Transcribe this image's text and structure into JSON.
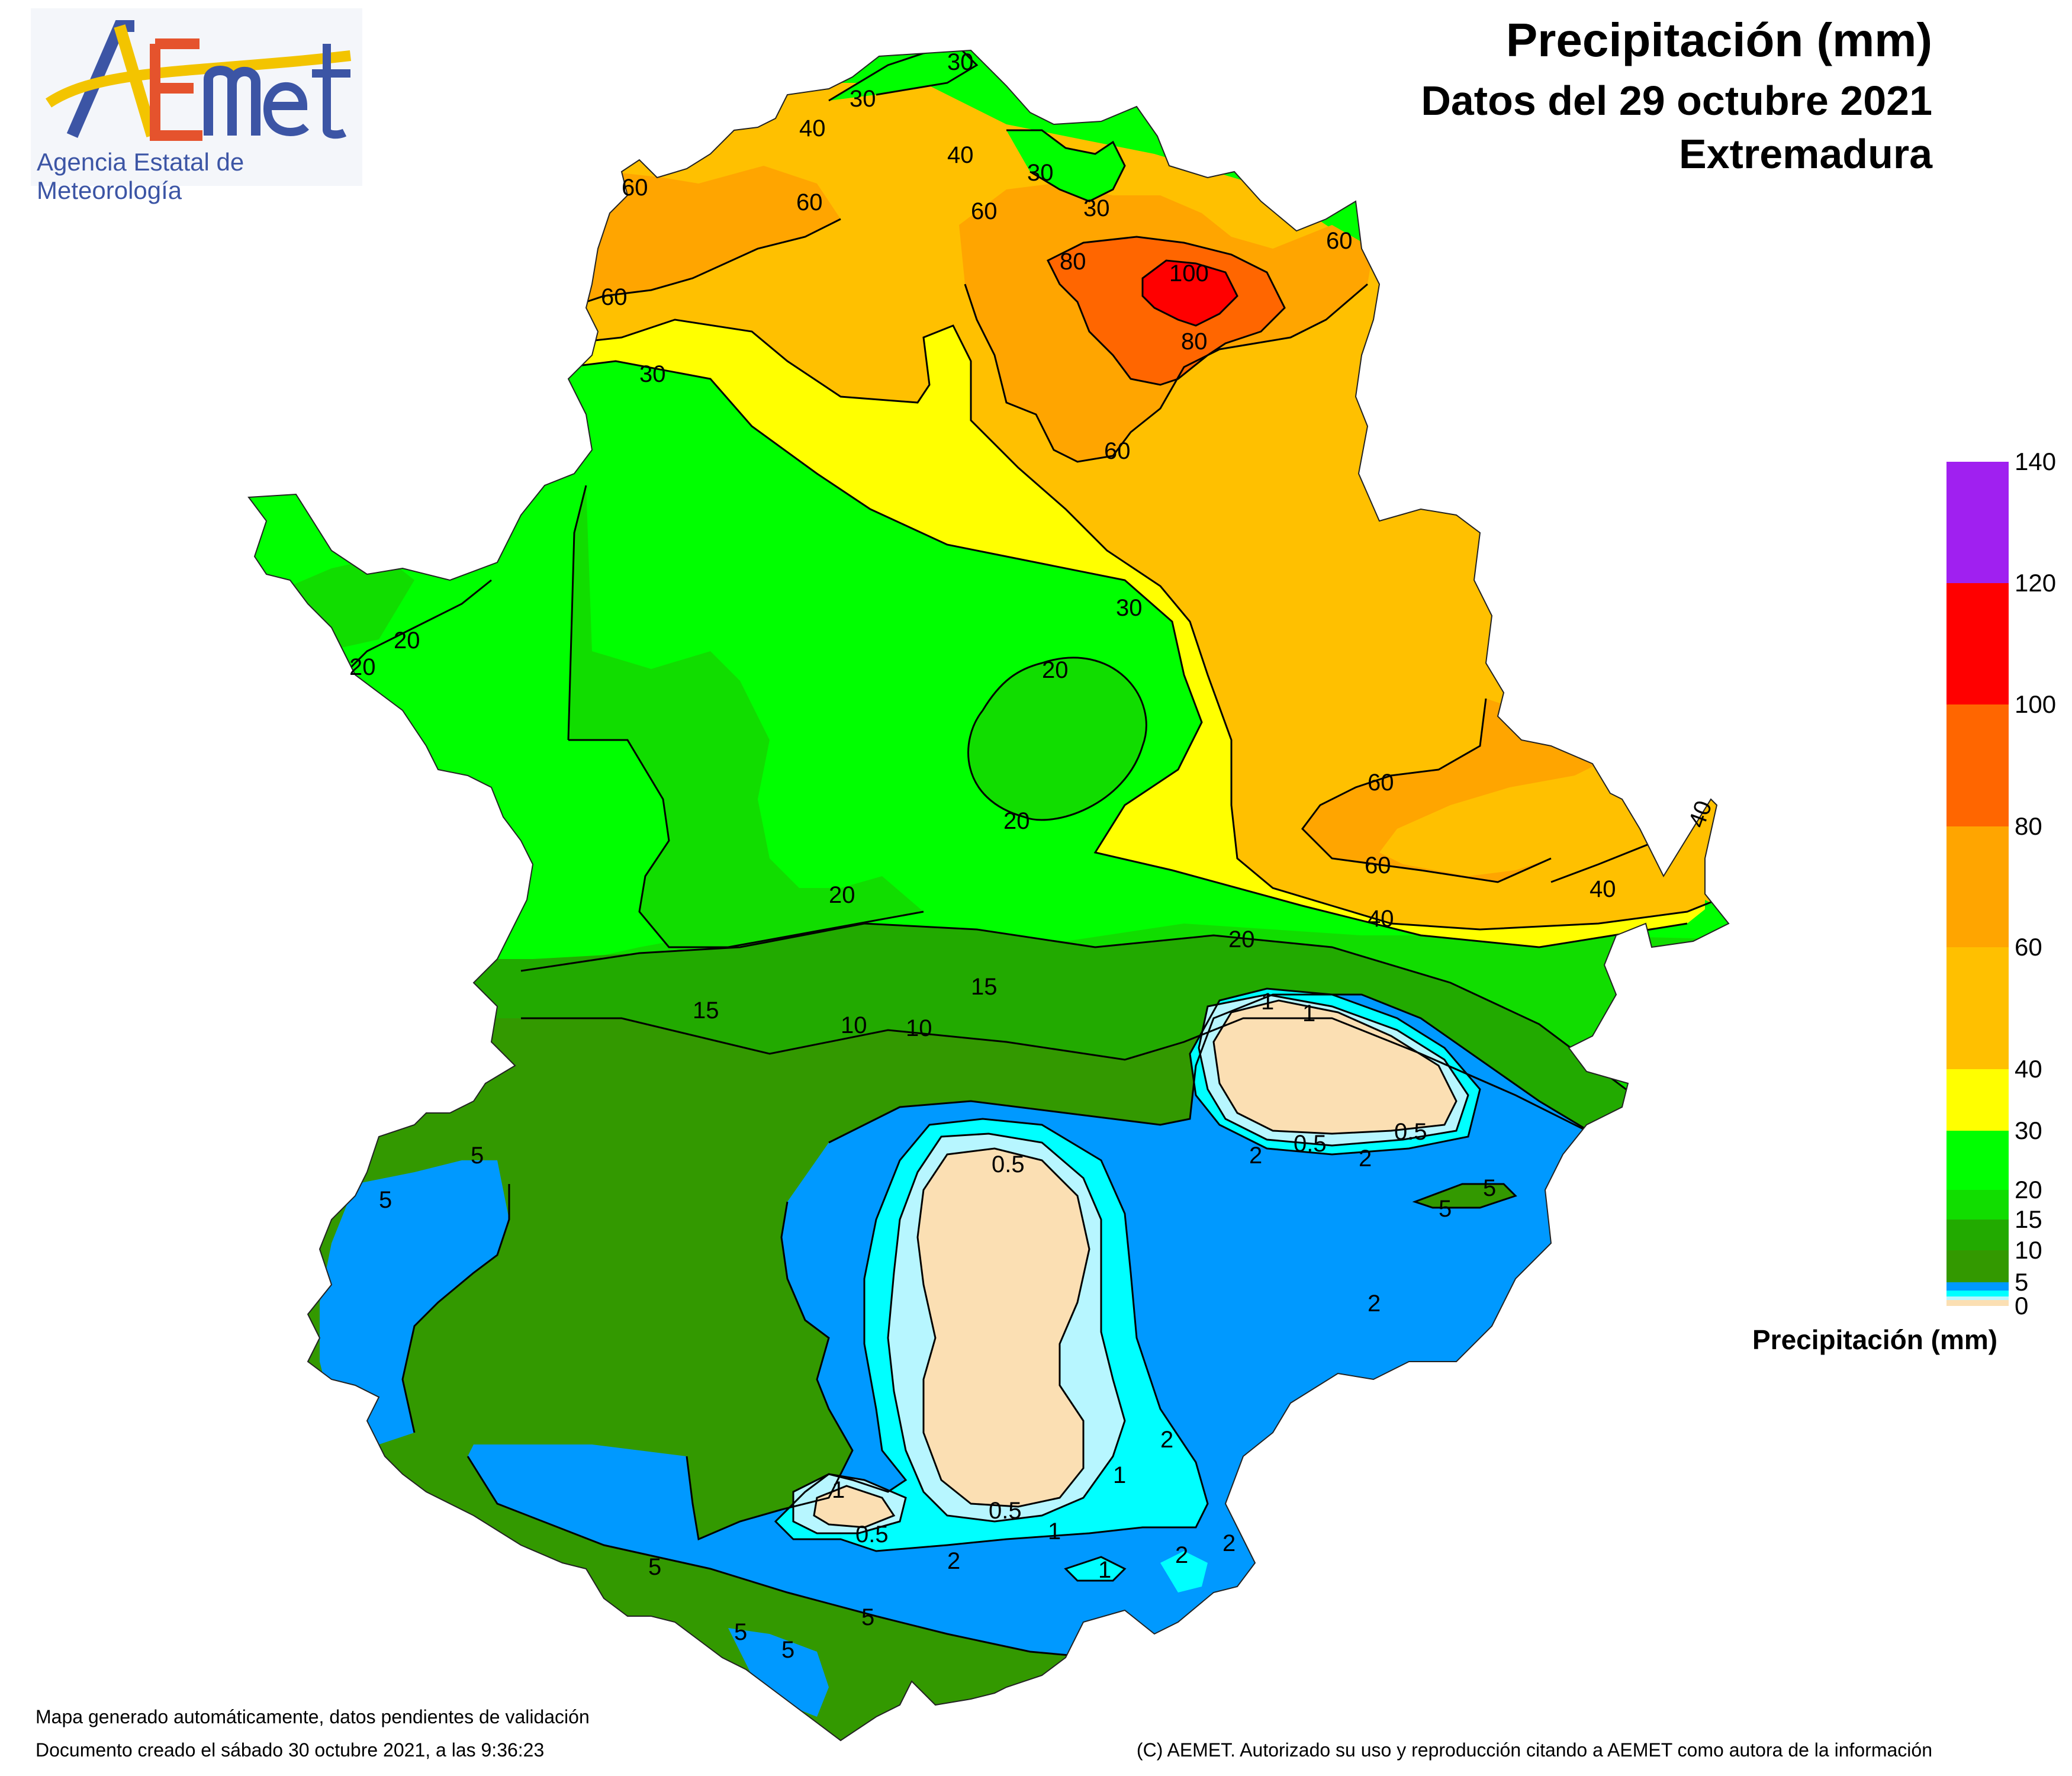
{
  "logo": {
    "wordmark": "AEMet",
    "agency": "Agencia Estatal de Meteorología"
  },
  "title": {
    "line1": "Precipitación (mm)",
    "line2": "Datos del 29 octubre 2021",
    "line3": "Extremadura"
  },
  "legend": {
    "title": "Precipitación (mm)",
    "classes": [
      {
        "min": 0,
        "max": 0.5,
        "color": "#fbdfb3"
      },
      {
        "min": 0.5,
        "max": 1,
        "color": "#b7f6ff"
      },
      {
        "min": 1,
        "max": 2,
        "color": "#00ffff"
      },
      {
        "min": 2,
        "max": 5,
        "color": "#0099ff"
      },
      {
        "min": 5,
        "max": 10,
        "color": "#339900"
      },
      {
        "min": 10,
        "max": 15,
        "color": "#22aa00"
      },
      {
        "min": 15,
        "max": 20,
        "color": "#11dd00"
      },
      {
        "min": 20,
        "max": 30,
        "color": "#00ff00"
      },
      {
        "min": 30,
        "max": 40,
        "color": "#ffff00"
      },
      {
        "min": 40,
        "max": 60,
        "color": "#ffc000"
      },
      {
        "min": 60,
        "max": 80,
        "color": "#ffa500"
      },
      {
        "min": 80,
        "max": 100,
        "color": "#ff6600"
      },
      {
        "min": 100,
        "max": 120,
        "color": "#ff0000"
      },
      {
        "min": 120,
        "max": 140,
        "color": "#a020f0"
      }
    ],
    "ticks": [
      "0",
      "5",
      "10",
      "15",
      "20",
      "30",
      "40",
      "60",
      "80",
      "100",
      "120",
      "140"
    ]
  },
  "contour_labels": [
    "30",
    "30",
    "40",
    "40",
    "30",
    "30",
    "60",
    "60",
    "60",
    "60",
    "80",
    "100",
    "80",
    "60",
    "60",
    "30",
    "20",
    "20",
    "20",
    "20",
    "30",
    "60",
    "60",
    "40",
    "40",
    "40",
    "20",
    "20",
    "15",
    "15",
    "10",
    "10",
    "1",
    "1",
    "0.5",
    "0.5",
    "2",
    "2",
    "5",
    "5",
    "5",
    "5",
    "0.5",
    "2",
    "2",
    "1",
    "0.5",
    "1",
    "0.5",
    "1",
    "2",
    "1",
    "2",
    "2",
    "5",
    "5",
    "5",
    "5"
  ],
  "footer": {
    "note1": "Mapa generado automáticamente, datos pendientes de validación",
    "note2": "Documento creado el sábado 30 octubre 2021, a las 9:36:23",
    "copyright": "(C) AEMET. Autorizado su uso y reproducción citando a AEMET como autora de la información"
  }
}
